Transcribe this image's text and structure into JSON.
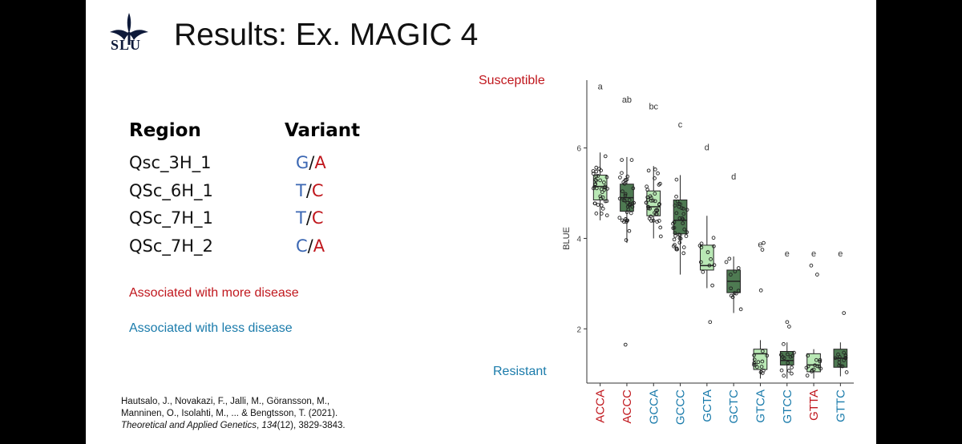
{
  "slide": {
    "logo_text": "SLU",
    "title": "Results: Ex. MAGIC 4"
  },
  "table": {
    "header_region": "Region",
    "header_variant": "Variant",
    "rows": [
      {
        "region": "Qsc_3H_1",
        "v1": "G",
        "sep": "/",
        "v2": "A"
      },
      {
        "region": "QSc_6H_1",
        "v1": "T",
        "sep": "/",
        "v2": "C"
      },
      {
        "region": "QSc_7H_1",
        "v1": "T",
        "sep": "/",
        "v2": "C"
      },
      {
        "region": "QSc_7H_2",
        "v1": "C",
        "sep": "/",
        "v2": "A"
      }
    ]
  },
  "legend_text": {
    "more": "Associated with more disease",
    "less": "Associated with less disease"
  },
  "citation": {
    "line1": "Hautsalo, J., Novakazi, F., Jalli, M., Göransson, M.,",
    "line2": "Manninen, O., Isolahti, M., ... & Bengtsson, T. (2021).",
    "journal": "Theoretical and Applied Genetics",
    "sep1": ", ",
    "volume": "134",
    "rest": "(12), 3829-3843."
  },
  "chart_labels": {
    "susceptible": "Susceptible",
    "resistant": "Resistant"
  },
  "colors": {
    "red": "#c0171d",
    "blue": "#3b67b3",
    "teal": "#1a7bab",
    "light_green": "#b9e8b5",
    "dark_green": "#4e7a52"
  },
  "chart_data": {
    "type": "box",
    "ylabel": "BLUE",
    "xlabel": "",
    "ylim": [
      0.8,
      7.5
    ],
    "yticks": [
      2,
      4,
      6
    ],
    "categories": [
      "ACCA",
      "ACCC",
      "GCCA",
      "GCCC",
      "GCTA",
      "GCTC",
      "GTCA",
      "GTCC",
      "GTTA",
      "GTTC"
    ],
    "category_colors": [
      "red",
      "red",
      "blue",
      "blue",
      "blue",
      "blue",
      "blue",
      "blue",
      "red",
      "blue"
    ],
    "box_fill": [
      "light",
      "dark",
      "light",
      "dark",
      "light",
      "dark",
      "light",
      "dark",
      "light",
      "dark"
    ],
    "letters": [
      "a",
      "ab",
      "bc",
      "c",
      "d",
      "d",
      "e",
      "e",
      "e",
      "e"
    ],
    "letter_y": [
      7.3,
      7.0,
      6.85,
      6.45,
      5.95,
      5.3,
      3.8,
      3.6,
      3.6,
      3.6
    ],
    "boxes": [
      {
        "q1": 4.85,
        "median": 5.15,
        "q3": 5.4,
        "min": 4.4,
        "max": 5.9
      },
      {
        "q1": 4.6,
        "median": 4.9,
        "q3": 5.2,
        "min": 3.9,
        "max": 5.8
      },
      {
        "q1": 4.5,
        "median": 4.7,
        "q3": 5.05,
        "min": 4.0,
        "max": 5.6
      },
      {
        "q1": 4.1,
        "median": 4.4,
        "q3": 4.85,
        "min": 3.2,
        "max": 5.4
      },
      {
        "q1": 3.3,
        "median": 3.4,
        "q3": 3.85,
        "min": 2.9,
        "max": 4.5
      },
      {
        "q1": 2.8,
        "median": 3.05,
        "q3": 3.3,
        "min": 2.35,
        "max": 3.6
      },
      {
        "q1": 1.1,
        "median": 1.45,
        "q3": 1.55,
        "min": 0.9,
        "max": 1.75
      },
      {
        "q1": 1.2,
        "median": 1.3,
        "q3": 1.5,
        "min": 0.9,
        "max": 1.7
      },
      {
        "q1": 1.05,
        "median": 1.2,
        "q3": 1.45,
        "min": 0.9,
        "max": 1.55
      },
      {
        "q1": 1.15,
        "median": 1.35,
        "q3": 1.55,
        "min": 0.95,
        "max": 1.7
      }
    ],
    "outliers": [
      [],
      [
        1.65
      ],
      [],
      [],
      [
        2.15
      ],
      [],
      [
        2.85,
        3.75,
        3.9
      ],
      [
        2.15,
        2.05
      ],
      [
        3.2,
        3.4
      ],
      [
        2.35
      ]
    ]
  }
}
